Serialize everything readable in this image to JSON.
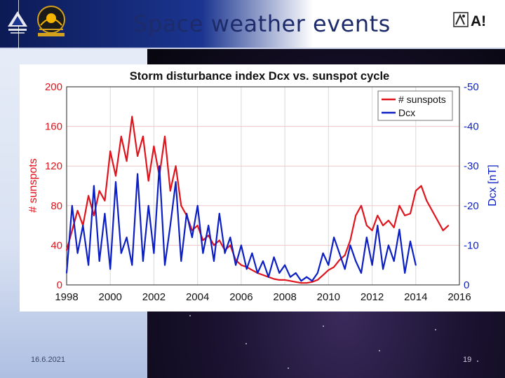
{
  "header": {
    "title": "Space weather events",
    "logo_right_text": "A!"
  },
  "footer": {
    "date": "16.6.2021",
    "page": "19"
  },
  "colors": {
    "sunspots": "#e0141c",
    "dcx": "#0b1fc4",
    "title": "#1d2b6b"
  },
  "chart_data": {
    "type": "line",
    "title": "Storm disturbance index Dcx vs. sunspot cycle",
    "xlim": [
      1998,
      2016
    ],
    "x_ticks": [
      "1998",
      "2000",
      "2002",
      "2004",
      "2006",
      "2008",
      "2010",
      "2012",
      "2014",
      "2016"
    ],
    "ylabel_left": "# sunspots",
    "ylim_left": [
      0,
      200
    ],
    "y_ticks_left": [
      "0",
      "40",
      "80",
      "120",
      "160",
      "200"
    ],
    "ylabel_right": "Dcx [nT]",
    "ylim_right": [
      0,
      -50
    ],
    "y_ticks_right": [
      "0",
      "-10",
      "-20",
      "-30",
      "-40",
      "-50"
    ],
    "grid": true,
    "legend": "top-right",
    "series": [
      {
        "name": "# sunspots",
        "axis": "left",
        "color": "#e0141c",
        "x": [
          1998.0,
          1998.25,
          1998.5,
          1998.75,
          1999.0,
          1999.25,
          1999.5,
          1999.75,
          2000.0,
          2000.25,
          2000.5,
          2000.75,
          2001.0,
          2001.25,
          2001.5,
          2001.75,
          2002.0,
          2002.25,
          2002.5,
          2002.75,
          2003.0,
          2003.25,
          2003.5,
          2003.75,
          2004.0,
          2004.25,
          2004.5,
          2004.75,
          2005.0,
          2005.25,
          2005.5,
          2005.75,
          2006.0,
          2006.25,
          2006.5,
          2006.75,
          2007.0,
          2007.25,
          2007.5,
          2007.75,
          2008.0,
          2008.25,
          2008.5,
          2008.75,
          2009.0,
          2009.25,
          2009.5,
          2009.75,
          2010.0,
          2010.25,
          2010.5,
          2010.75,
          2011.0,
          2011.25,
          2011.5,
          2011.75,
          2012.0,
          2012.25,
          2012.5,
          2012.75,
          2013.0,
          2013.25,
          2013.5,
          2013.75,
          2014.0,
          2014.25,
          2014.5,
          2014.75,
          2015.0,
          2015.25,
          2015.5
        ],
        "values": [
          35,
          55,
          75,
          60,
          90,
          70,
          95,
          85,
          135,
          110,
          150,
          125,
          170,
          130,
          150,
          105,
          140,
          110,
          150,
          95,
          120,
          80,
          70,
          55,
          60,
          45,
          50,
          40,
          45,
          35,
          40,
          25,
          20,
          18,
          15,
          12,
          10,
          8,
          6,
          5,
          5,
          4,
          3,
          2,
          2,
          3,
          5,
          10,
          15,
          18,
          25,
          30,
          45,
          70,
          80,
          60,
          55,
          70,
          60,
          65,
          58,
          80,
          70,
          72,
          95,
          100,
          85,
          75,
          65,
          55,
          60
        ]
      },
      {
        "name": "Dcx",
        "axis": "right",
        "color": "#0b1fc4",
        "x": [
          1998.0,
          1998.25,
          1998.5,
          1998.75,
          1999.0,
          1999.25,
          1999.5,
          1999.75,
          2000.0,
          2000.25,
          2000.5,
          2000.75,
          2001.0,
          2001.25,
          2001.5,
          2001.75,
          2002.0,
          2002.25,
          2002.5,
          2002.75,
          2003.0,
          2003.25,
          2003.5,
          2003.75,
          2004.0,
          2004.25,
          2004.5,
          2004.75,
          2005.0,
          2005.25,
          2005.5,
          2005.75,
          2006.0,
          2006.25,
          2006.5,
          2006.75,
          2007.0,
          2007.25,
          2007.5,
          2007.75,
          2008.0,
          2008.25,
          2008.5,
          2008.75,
          2009.0,
          2009.25,
          2009.5,
          2009.75,
          2010.0,
          2010.25,
          2010.5,
          2010.75,
          2011.0,
          2011.25,
          2011.5,
          2011.75,
          2012.0,
          2012.25,
          2012.5,
          2012.75,
          2013.0,
          2013.25,
          2013.5,
          2013.75,
          2014.0
        ],
        "values": [
          -3,
          -20,
          -8,
          -15,
          -5,
          -25,
          -6,
          -18,
          -4,
          -26,
          -8,
          -12,
          -5,
          -28,
          -6,
          -20,
          -8,
          -30,
          -5,
          -15,
          -26,
          -6,
          -18,
          -12,
          -20,
          -8,
          -15,
          -6,
          -18,
          -8,
          -12,
          -5,
          -10,
          -4,
          -8,
          -3,
          -6,
          -2,
          -7,
          -3,
          -5,
          -2,
          -3,
          -1,
          -2,
          -1,
          -3,
          -8,
          -5,
          -12,
          -8,
          -4,
          -10,
          -6,
          -3,
          -12,
          -5,
          -15,
          -4,
          -10,
          -6,
          -14,
          -3,
          -11,
          -5
        ]
      }
    ]
  }
}
